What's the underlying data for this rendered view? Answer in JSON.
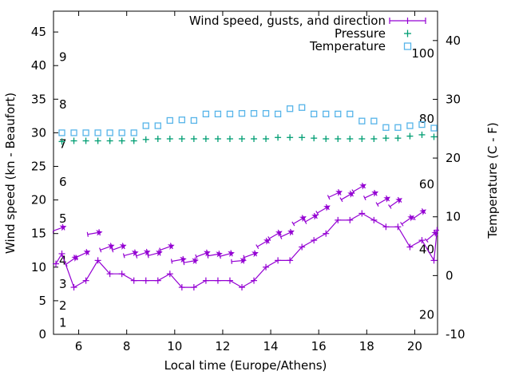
{
  "chart_data": {
    "type": "line",
    "title": "",
    "xlabel": "Local time (Europe/Athens)",
    "ylabel_left": "Wind speed (kn - Beaufort)",
    "ylabel_right": "Temperature (C - F)",
    "grid": false,
    "legend_position": "top-right-inside",
    "legend": [
      {
        "label": "Wind speed, gusts, and direction",
        "marker": "errorbar-line",
        "color": "#9400d3"
      },
      {
        "label": "Pressure",
        "marker": "plus",
        "color": "#009e73"
      },
      {
        "label": "Temperature",
        "marker": "open-square",
        "color": "#56b4e9"
      }
    ],
    "x_range": [
      4.95,
      20.95
    ],
    "y_left_range": [
      0,
      48.1
    ],
    "y_right_range": [
      -10,
      45
    ],
    "x_ticks": [
      6,
      8,
      10,
      12,
      14,
      16,
      18,
      20
    ],
    "y_left_ticks": [
      0,
      5,
      10,
      15,
      20,
      25,
      30,
      35,
      40,
      45
    ],
    "y_right_ticks": [
      -10,
      0,
      10,
      20,
      30,
      40
    ],
    "beaufort_scale_labels": [
      {
        "text": "1",
        "kn": 1.7
      },
      {
        "text": "2",
        "kn": 4.3
      },
      {
        "text": "3",
        "kn": 7.5
      },
      {
        "text": "4",
        "kn": 11.0
      },
      {
        "text": "5",
        "kn": 17.2
      },
      {
        "text": "6",
        "kn": 22.7
      },
      {
        "text": "7",
        "kn": 28.3
      },
      {
        "text": "8",
        "kn": 34.2
      },
      {
        "text": "9",
        "kn": 41.3
      }
    ],
    "fahrenheit_scale_labels": [
      {
        "text": "20",
        "f": 20
      },
      {
        "text": "40",
        "f": 40
      },
      {
        "text": "60",
        "f": 60
      },
      {
        "text": "80",
        "f": 80
      },
      {
        "text": "100",
        "f": 100
      }
    ],
    "colors": {
      "wind": "#9400d3",
      "pressure": "#009e73",
      "temperature": "#56b4e9",
      "axis": "#000000"
    },
    "series": {
      "wind_speed_kn": {
        "x": [
          5.05,
          5.3,
          5.8,
          6.3,
          6.8,
          7.3,
          7.8,
          8.3,
          8.8,
          9.3,
          9.8,
          10.3,
          10.8,
          11.3,
          11.8,
          12.3,
          12.8,
          13.3,
          13.8,
          14.3,
          14.8,
          15.3,
          15.8,
          16.3,
          16.8,
          17.3,
          17.8,
          18.3,
          18.8,
          19.3,
          19.8,
          20.3,
          20.8,
          20.93
        ],
        "y": [
          10.5,
          12,
          7,
          8,
          11,
          9,
          9,
          8,
          8,
          8,
          9,
          7,
          7,
          8,
          8,
          8,
          7,
          8,
          10,
          11,
          11,
          13,
          14,
          15,
          17,
          17,
          18,
          17,
          16,
          16,
          13,
          14,
          11,
          15.5
        ]
      },
      "wind_gusts_kn": {
        "x": [
          5.4,
          5.9,
          6.4,
          6.9,
          7.4,
          7.9,
          8.4,
          8.9,
          9.4,
          9.9,
          10.4,
          10.9,
          11.4,
          11.9,
          12.4,
          12.9,
          13.4,
          13.9,
          14.4,
          14.9,
          15.4,
          15.9,
          16.4,
          16.9,
          17.4,
          17.9,
          18.4,
          18.9,
          19.4,
          19.9,
          20.4,
          20.9
        ],
        "y": [
          16,
          11.5,
          12.3,
          15.2,
          13.2,
          13.2,
          12.2,
          12.3,
          12.2,
          13.2,
          11.2,
          11,
          12.2,
          12,
          12.1,
          11,
          12.1,
          14,
          15.2,
          15.3,
          17.4,
          17.7,
          19,
          21.2,
          21,
          22.2,
          21.1,
          20.3,
          20.1,
          17.5,
          18.4,
          15.2
        ],
        "direction_angle_deg": [
          20,
          35,
          25,
          10,
          20,
          20,
          15,
          20,
          15,
          20,
          10,
          10,
          20,
          10,
          15,
          5,
          20,
          30,
          30,
          25,
          30,
          30,
          30,
          25,
          30,
          30,
          25,
          30,
          35,
          35,
          35,
          40
        ]
      },
      "pressure_plotted_left_scale": {
        "x": [
          5.3,
          5.8,
          6.3,
          6.8,
          7.3,
          7.8,
          8.3,
          8.8,
          9.3,
          9.8,
          10.3,
          10.8,
          11.3,
          11.8,
          12.3,
          12.8,
          13.3,
          13.8,
          14.3,
          14.8,
          15.3,
          15.8,
          16.3,
          16.8,
          17.3,
          17.8,
          18.3,
          18.8,
          19.3,
          19.8,
          20.3,
          20.8
        ],
        "y": [
          28.7,
          28.8,
          28.8,
          28.8,
          28.8,
          28.8,
          28.8,
          29.0,
          29.1,
          29.1,
          29.1,
          29.1,
          29.1,
          29.1,
          29.1,
          29.1,
          29.1,
          29.1,
          29.3,
          29.3,
          29.3,
          29.2,
          29.1,
          29.1,
          29.1,
          29.1,
          29.1,
          29.2,
          29.2,
          29.5,
          29.7,
          29.4
        ]
      },
      "temperature_C": {
        "x": [
          5.3,
          5.8,
          6.3,
          6.8,
          7.3,
          7.8,
          8.3,
          8.8,
          9.3,
          9.8,
          10.3,
          10.8,
          11.3,
          11.8,
          12.3,
          12.8,
          13.3,
          13.8,
          14.3,
          14.8,
          15.3,
          15.8,
          16.3,
          16.8,
          17.3,
          17.8,
          18.3,
          18.8,
          19.3,
          19.8,
          20.3,
          20.8
        ],
        "y": [
          24.3,
          24.3,
          24.3,
          24.3,
          24.3,
          24.3,
          24.3,
          25.5,
          25.5,
          26.4,
          26.5,
          26.4,
          27.5,
          27.5,
          27.5,
          27.6,
          27.6,
          27.6,
          27.5,
          28.4,
          28.6,
          27.5,
          27.5,
          27.5,
          27.5,
          26.3,
          26.3,
          25.2,
          25.2,
          25.5,
          25.7,
          25.1
        ]
      }
    }
  }
}
